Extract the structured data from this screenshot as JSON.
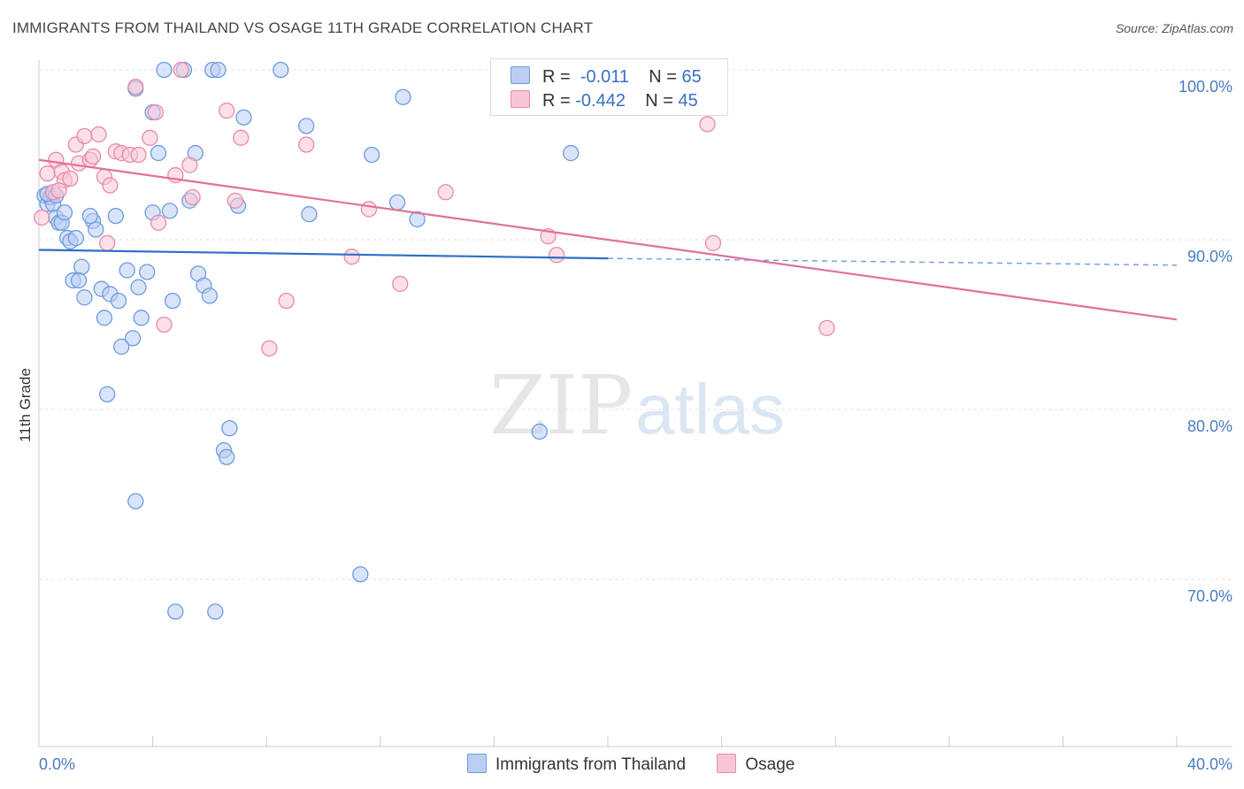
{
  "header": {
    "title": "IMMIGRANTS FROM THAILAND VS OSAGE 11TH GRADE CORRELATION CHART",
    "source": "Source: ZipAtlas.com"
  },
  "watermark": {
    "zip": "ZIP",
    "atlas": "atlas"
  },
  "legend": {
    "rows": [
      {
        "r_label": "R =",
        "r_value": "-0.011",
        "n_label": "N =",
        "n_value": "65"
      },
      {
        "r_label": "R =",
        "r_value": "-0.442",
        "n_label": "N =",
        "n_value": "45"
      }
    ]
  },
  "chart_data": {
    "type": "scatter",
    "ylabel": "11th Grade",
    "xlim": [
      0,
      40
    ],
    "ylim": [
      60.5,
      103
    ],
    "x_tick_labels": [
      "0.0%",
      "40.0%"
    ],
    "y_ticks": [
      {
        "value": 100,
        "label": "100.0%"
      },
      {
        "value": 90,
        "label": "90.0%"
      },
      {
        "value": 80,
        "label": "80.0%"
      },
      {
        "value": 70,
        "label": "70.0%"
      }
    ],
    "grid": true,
    "legend_position": "top-center",
    "series": [
      {
        "name": "Immigrants from Thailand",
        "color": "#6f9be0",
        "fill": "#b9cef2",
        "trend": {
          "x0": 0,
          "y0": 89.4,
          "x1": 20,
          "y1": 88.9,
          "dash_to_x": 40,
          "dash_to_y": 88.5
        },
        "points": [
          [
            0.2,
            92.6
          ],
          [
            0.3,
            92.1
          ],
          [
            0.4,
            92.5
          ],
          [
            0.5,
            92.1
          ],
          [
            0.6,
            91.3
          ],
          [
            0.7,
            91.0
          ],
          [
            0.8,
            91.0
          ],
          [
            1.0,
            90.1
          ],
          [
            1.1,
            89.9
          ],
          [
            1.3,
            90.1
          ],
          [
            1.5,
            88.4
          ],
          [
            1.2,
            87.6
          ],
          [
            1.4,
            87.6
          ],
          [
            1.6,
            86.6
          ],
          [
            1.9,
            91.1
          ],
          [
            2.0,
            90.6
          ],
          [
            1.8,
            91.4
          ],
          [
            2.7,
            91.4
          ],
          [
            2.2,
            87.1
          ],
          [
            2.5,
            86.8
          ],
          [
            2.8,
            86.4
          ],
          [
            3.1,
            88.2
          ],
          [
            3.5,
            87.2
          ],
          [
            3.8,
            88.1
          ],
          [
            2.3,
            85.4
          ],
          [
            3.6,
            85.4
          ],
          [
            3.3,
            84.2
          ],
          [
            2.9,
            83.7
          ],
          [
            2.4,
            80.9
          ],
          [
            4.0,
            91.6
          ],
          [
            4.6,
            91.7
          ],
          [
            5.3,
            92.3
          ],
          [
            5.6,
            88.0
          ],
          [
            5.8,
            87.3
          ],
          [
            6.0,
            86.7
          ],
          [
            4.7,
            86.4
          ],
          [
            4.2,
            95.1
          ],
          [
            5.5,
            95.1
          ],
          [
            4.0,
            97.5
          ],
          [
            4.4,
            100
          ],
          [
            5.1,
            100
          ],
          [
            6.1,
            100
          ],
          [
            6.3,
            100
          ],
          [
            8.5,
            100
          ],
          [
            3.4,
            98.9
          ],
          [
            7.2,
            97.2
          ],
          [
            9.4,
            96.7
          ],
          [
            12.8,
            98.4
          ],
          [
            11.7,
            95.0
          ],
          [
            18.7,
            95.1
          ],
          [
            7.0,
            92.0
          ],
          [
            9.5,
            91.5
          ],
          [
            12.6,
            92.2
          ],
          [
            13.3,
            91.2
          ],
          [
            6.7,
            78.9
          ],
          [
            6.5,
            77.6
          ],
          [
            6.6,
            77.2
          ],
          [
            3.4,
            74.6
          ],
          [
            17.6,
            78.7
          ],
          [
            11.3,
            70.3
          ],
          [
            4.8,
            68.1
          ],
          [
            6.2,
            68.1
          ],
          [
            0.3,
            92.7
          ],
          [
            0.6,
            92.6
          ],
          [
            0.9,
            91.6
          ]
        ]
      },
      {
        "name": "Osage",
        "color": "#e98aa8",
        "fill": "#f7c6d5",
        "trend": {
          "x0": 0,
          "y0": 94.7,
          "x1": 40,
          "y1": 85.3
        },
        "points": [
          [
            0.1,
            91.3
          ],
          [
            0.3,
            93.9
          ],
          [
            0.5,
            92.8
          ],
          [
            0.6,
            94.7
          ],
          [
            0.8,
            94.0
          ],
          [
            0.9,
            93.5
          ],
          [
            1.1,
            93.6
          ],
          [
            1.3,
            95.6
          ],
          [
            1.4,
            94.5
          ],
          [
            1.6,
            96.1
          ],
          [
            1.8,
            94.7
          ],
          [
            1.9,
            94.9
          ],
          [
            2.1,
            96.2
          ],
          [
            2.3,
            93.7
          ],
          [
            2.5,
            93.2
          ],
          [
            2.7,
            95.2
          ],
          [
            2.9,
            95.1
          ],
          [
            3.2,
            95.0
          ],
          [
            3.5,
            95.0
          ],
          [
            3.4,
            99.0
          ],
          [
            3.9,
            96.0
          ],
          [
            4.1,
            97.5
          ],
          [
            4.8,
            93.8
          ],
          [
            5.3,
            94.4
          ],
          [
            5.4,
            92.5
          ],
          [
            5.0,
            100
          ],
          [
            6.6,
            97.6
          ],
          [
            7.1,
            96.0
          ],
          [
            6.9,
            92.3
          ],
          [
            9.4,
            95.6
          ],
          [
            11.0,
            89.0
          ],
          [
            11.6,
            91.8
          ],
          [
            12.7,
            87.4
          ],
          [
            14.3,
            92.8
          ],
          [
            17.9,
            90.2
          ],
          [
            18.2,
            89.1
          ],
          [
            23.7,
            89.8
          ],
          [
            23.5,
            96.8
          ],
          [
            27.7,
            84.8
          ],
          [
            8.7,
            86.4
          ],
          [
            8.1,
            83.6
          ],
          [
            4.4,
            85.0
          ],
          [
            4.2,
            91.0
          ],
          [
            2.4,
            89.8
          ],
          [
            0.7,
            92.9
          ]
        ]
      }
    ]
  }
}
